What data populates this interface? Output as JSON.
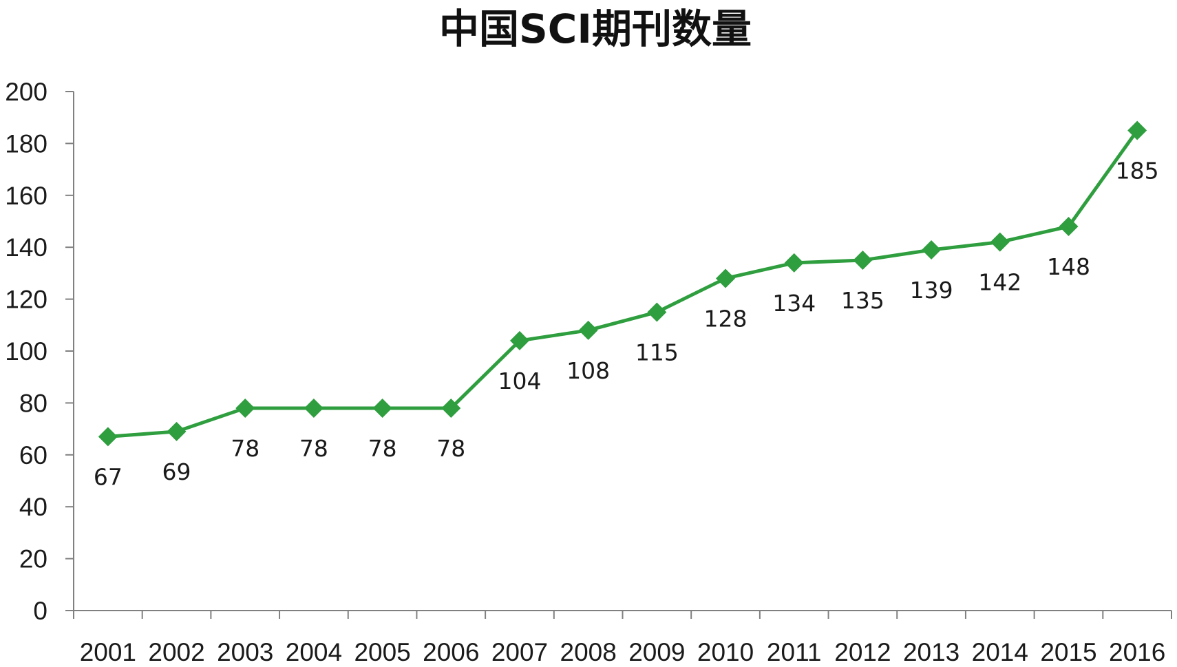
{
  "chart_data": {
    "type": "line",
    "title": "中国SCI期刊数量",
    "xlabel": "",
    "ylabel": "",
    "categories": [
      "2001",
      "2002",
      "2003",
      "2004",
      "2005",
      "2006",
      "2007",
      "2008",
      "2009",
      "2010",
      "2011",
      "2012",
      "2013",
      "2014",
      "2015",
      "2016"
    ],
    "series": [
      {
        "values": [
          67,
          69,
          78,
          78,
          78,
          78,
          104,
          108,
          115,
          128,
          134,
          135,
          139,
          142,
          148,
          185
        ],
        "marker": "diamond",
        "color": "#2e9e3e"
      }
    ],
    "ylim": [
      0,
      200
    ],
    "yticks": [
      0,
      20,
      40,
      60,
      80,
      100,
      120,
      140,
      160,
      180,
      200
    ],
    "grid": false,
    "legend": "none",
    "data_labels": "below"
  },
  "colors": {
    "series": "#2e9e3e",
    "axis": "#808080",
    "text": "#1a1a1a"
  }
}
